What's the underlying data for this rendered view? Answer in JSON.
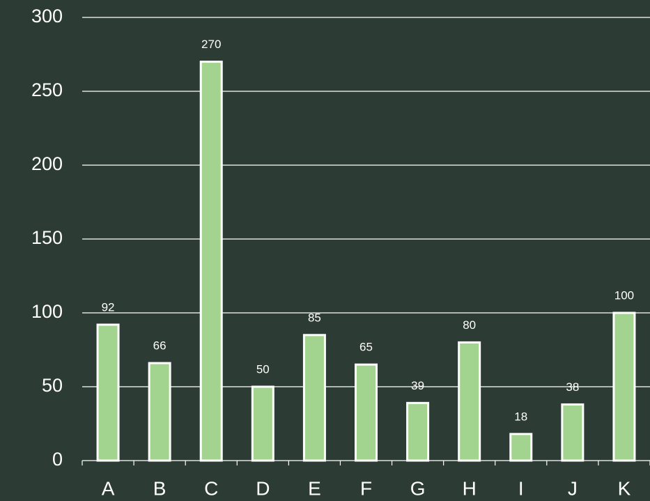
{
  "chart_data": {
    "type": "bar",
    "categories": [
      "A",
      "B",
      "C",
      "D",
      "E",
      "F",
      "G",
      "H",
      "I",
      "J",
      "K"
    ],
    "values": [
      92,
      66,
      270,
      50,
      85,
      65,
      39,
      80,
      18,
      38,
      100
    ],
    "color": "#a3d48f",
    "ylim": [
      0,
      300
    ],
    "yticks": [
      0,
      50,
      100,
      150,
      200,
      250,
      300
    ],
    "grid": true
  }
}
